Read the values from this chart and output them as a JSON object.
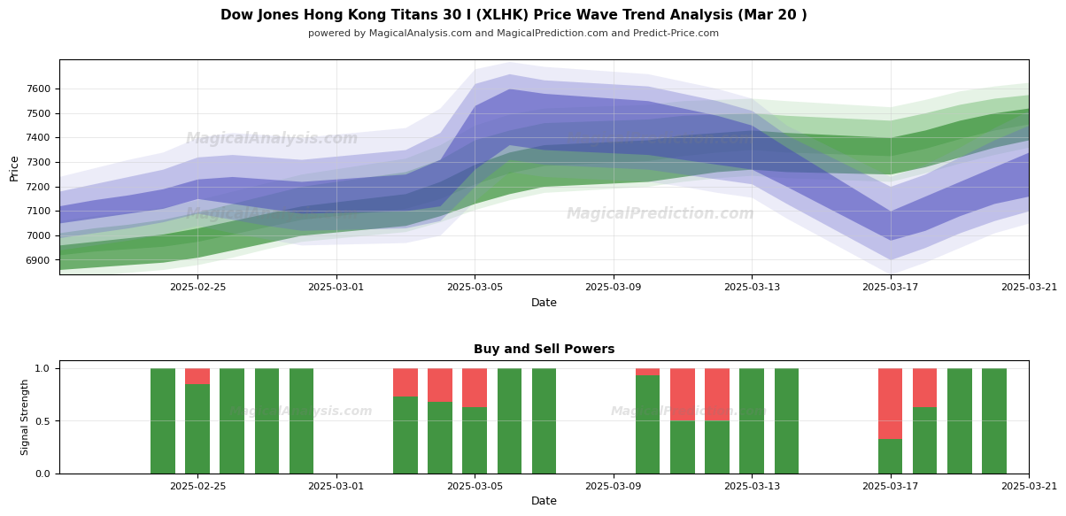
{
  "title": "Dow Jones Hong Kong Titans 30 I (XLHK) Price Wave Trend Analysis (Mar 20 )",
  "subtitle": "powered by MagicalAnalysis.com and MagicalPrediction.com and Predict-Price.com",
  "xlabel": "Date",
  "ylabel_top": "Price",
  "ylabel_bot": "Signal Strength",
  "title_bot": "Buy and Sell Powers",
  "dates": [
    "2025-02-21",
    "2025-02-22",
    "2025-02-23",
    "2025-02-24",
    "2025-02-25",
    "2025-02-26",
    "2025-02-27",
    "2025-02-28",
    "2025-03-03",
    "2025-03-04",
    "2025-03-05",
    "2025-03-06",
    "2025-03-07",
    "2025-03-10",
    "2025-03-11",
    "2025-03-12",
    "2025-03-13",
    "2025-03-14",
    "2025-03-17",
    "2025-03-18",
    "2025-03-19",
    "2025-03-20",
    "2025-03-21"
  ],
  "green_b1_lo": [
    6860,
    6870,
    6880,
    6890,
    6910,
    6940,
    6970,
    7000,
    7040,
    7080,
    7130,
    7170,
    7200,
    7220,
    7240,
    7260,
    7270,
    7260,
    7250,
    7280,
    7320,
    7360,
    7390
  ],
  "green_b1_hi": [
    6960,
    6975,
    6990,
    7005,
    7030,
    7060,
    7090,
    7120,
    7170,
    7220,
    7290,
    7340,
    7370,
    7390,
    7410,
    7420,
    7430,
    7420,
    7400,
    7430,
    7470,
    7500,
    7520
  ],
  "green_b2_lo": [
    6920,
    6935,
    6945,
    6955,
    6975,
    7005,
    7035,
    7065,
    7110,
    7150,
    7210,
    7255,
    7285,
    7305,
    7325,
    7340,
    7350,
    7340,
    7325,
    7355,
    7395,
    7430,
    7455
  ],
  "green_b2_hi": [
    7010,
    7030,
    7045,
    7065,
    7095,
    7130,
    7165,
    7200,
    7260,
    7310,
    7390,
    7430,
    7460,
    7475,
    7490,
    7495,
    7500,
    7490,
    7470,
    7500,
    7535,
    7560,
    7575
  ],
  "green_b3_lo": [
    6820,
    6835,
    6848,
    6860,
    6880,
    6910,
    6945,
    6975,
    7015,
    7055,
    7105,
    7145,
    7175,
    7200,
    7220,
    7235,
    7245,
    7235,
    7220,
    7255,
    7295,
    7330,
    7360
  ],
  "green_b3_hi": [
    7060,
    7080,
    7095,
    7115,
    7145,
    7180,
    7215,
    7250,
    7315,
    7370,
    7450,
    7495,
    7520,
    7535,
    7550,
    7555,
    7560,
    7550,
    7525,
    7555,
    7590,
    7610,
    7625
  ],
  "blue_b1_lo": [
    7050,
    7070,
    7090,
    7110,
    7150,
    7130,
    7110,
    7090,
    7100,
    7120,
    7270,
    7370,
    7350,
    7330,
    7310,
    7290,
    7270,
    7200,
    6980,
    7020,
    7080,
    7130,
    7160
  ],
  "blue_b1_hi": [
    7120,
    7145,
    7165,
    7190,
    7230,
    7240,
    7230,
    7220,
    7250,
    7310,
    7530,
    7600,
    7580,
    7550,
    7520,
    7490,
    7450,
    7360,
    7100,
    7160,
    7220,
    7280,
    7340
  ],
  "blue_b2_lo": [
    6990,
    7010,
    7030,
    7055,
    7090,
    7065,
    7040,
    7020,
    7030,
    7060,
    7200,
    7310,
    7290,
    7270,
    7250,
    7230,
    7210,
    7130,
    6900,
    6950,
    7010,
    7060,
    7100
  ],
  "blue_b2_hi": [
    7180,
    7210,
    7240,
    7270,
    7320,
    7330,
    7320,
    7310,
    7350,
    7420,
    7620,
    7660,
    7635,
    7610,
    7580,
    7550,
    7510,
    7410,
    7200,
    7250,
    7320,
    7390,
    7450
  ],
  "blue_b3_lo": [
    6940,
    6960,
    6980,
    7005,
    7040,
    7010,
    6985,
    6960,
    6970,
    7000,
    7140,
    7260,
    7240,
    7220,
    7200,
    7175,
    7155,
    7070,
    6840,
    6890,
    6950,
    7010,
    7050
  ],
  "blue_b3_hi": [
    7240,
    7275,
    7310,
    7340,
    7400,
    7420,
    7410,
    7400,
    7440,
    7520,
    7680,
    7710,
    7690,
    7660,
    7630,
    7600,
    7560,
    7450,
    7240,
    7290,
    7360,
    7440,
    7510
  ],
  "bar_dates": [
    "2025-02-24",
    "2025-02-25",
    "2025-02-26",
    "2025-02-27",
    "2025-02-28",
    "2025-03-03",
    "2025-03-04",
    "2025-03-05",
    "2025-03-06",
    "2025-03-07",
    "2025-03-10",
    "2025-03-11",
    "2025-03-12",
    "2025-03-13",
    "2025-03-14",
    "2025-03-17",
    "2025-03-18",
    "2025-03-19",
    "2025-03-20"
  ],
  "green_signal": [
    1.0,
    0.85,
    1.0,
    1.0,
    1.0,
    0.73,
    0.68,
    0.63,
    1.0,
    1.0,
    0.93,
    0.5,
    0.5,
    1.0,
    1.0,
    0.33,
    0.63,
    1.0,
    1.0
  ],
  "red_signal": [
    0.0,
    0.15,
    0.0,
    0.0,
    0.0,
    0.27,
    0.32,
    0.37,
    0.0,
    0.0,
    0.07,
    0.5,
    0.5,
    0.0,
    0.0,
    0.67,
    0.37,
    0.0,
    0.0
  ],
  "green_dark": "#2d8a2d",
  "green_mid_c": "#5ab05a",
  "green_light": "#90cc90",
  "blue_dark": "#4444bb",
  "blue_mid_c": "#6666cc",
  "blue_light": "#9999dd",
  "red_color": "#ee4444",
  "bg": "#ffffff",
  "grid_color": "#cccccc",
  "ylim": [
    6840,
    7720
  ],
  "yticks": [
    6900,
    7000,
    7100,
    7200,
    7300,
    7400,
    7500,
    7600
  ],
  "bar_ylim": [
    0,
    1.08
  ],
  "bar_yticks": [
    0.0,
    0.5,
    1.0
  ],
  "tick_dates": [
    "2025-02-25",
    "2025-03-01",
    "2025-03-05",
    "2025-03-09",
    "2025-03-13",
    "2025-03-17",
    "2025-03-21"
  ]
}
